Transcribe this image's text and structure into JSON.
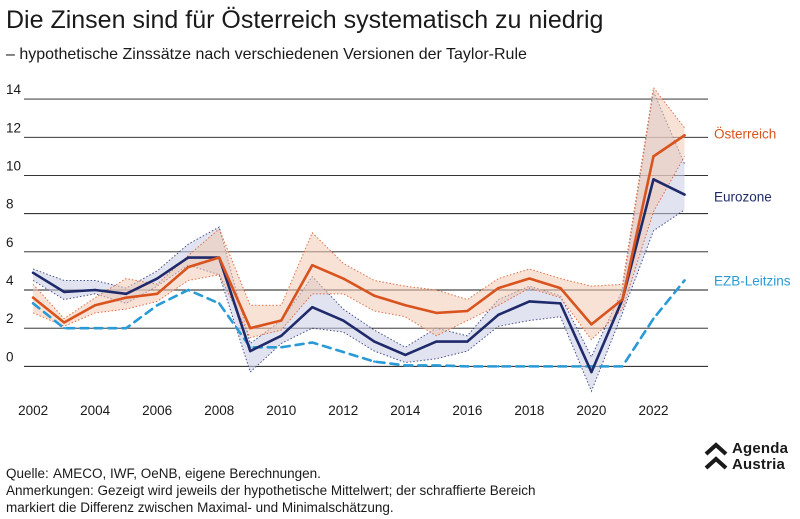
{
  "header": {
    "title": "Die Zinsen sind für Österreich systematisch zu niedrig",
    "subtitle": "– hypothetische Zinssätze nach verschiedenen Versionen der Taylor-Rule"
  },
  "chart_data": {
    "type": "line",
    "x": [
      2002,
      2003,
      2004,
      2005,
      2006,
      2007,
      2008,
      2009,
      2010,
      2011,
      2012,
      2013,
      2014,
      2015,
      2016,
      2017,
      2018,
      2019,
      2020,
      2021,
      2022,
      2023
    ],
    "xticks": [
      2002,
      2004,
      2006,
      2008,
      2010,
      2012,
      2014,
      2016,
      2018,
      2020,
      2022
    ],
    "yticks": [
      0,
      2,
      4,
      6,
      8,
      10,
      12,
      14
    ],
    "ylim": [
      -1.5,
      15
    ],
    "xlim": [
      2001.9,
      2023.5
    ],
    "grid": true,
    "series": [
      {
        "name": "Österreich",
        "color": "#d9531e",
        "style": "solid",
        "values": [
          3.6,
          2.3,
          3.2,
          3.6,
          3.8,
          5.2,
          5.7,
          2.0,
          2.4,
          5.3,
          4.6,
          3.7,
          3.2,
          2.8,
          2.9,
          4.1,
          4.6,
          4.1,
          2.2,
          3.5,
          11.0,
          12.1
        ],
        "band_max": [
          4.3,
          2.5,
          3.6,
          4.6,
          4.3,
          5.8,
          7.2,
          3.2,
          3.2,
          7.0,
          5.4,
          4.5,
          4.2,
          4.0,
          3.5,
          4.6,
          5.1,
          4.6,
          4.2,
          4.3,
          14.6,
          12.5
        ],
        "band_min": [
          2.8,
          2.1,
          2.8,
          3.0,
          3.4,
          4.5,
          4.8,
          1.5,
          1.9,
          3.8,
          3.8,
          2.9,
          2.6,
          1.6,
          2.4,
          3.2,
          4.1,
          3.6,
          1.4,
          3.0,
          8.1,
          11.0
        ]
      },
      {
        "name": "Eurozone",
        "color": "#1f2a6b",
        "style": "solid",
        "values": [
          4.9,
          3.9,
          4.0,
          3.8,
          4.6,
          5.7,
          5.7,
          0.8,
          1.6,
          3.1,
          2.4,
          1.3,
          0.6,
          1.3,
          1.3,
          2.7,
          3.4,
          3.3,
          -0.3,
          3.5,
          9.8,
          9.0
        ],
        "band_max": [
          5.1,
          4.5,
          4.5,
          4.1,
          5.0,
          6.4,
          7.3,
          1.2,
          2.4,
          4.7,
          3.0,
          1.9,
          1.0,
          2.0,
          1.6,
          3.5,
          4.2,
          3.7,
          0.5,
          4.0,
          14.4,
          10.6
        ],
        "band_min": [
          4.5,
          3.5,
          3.8,
          3.3,
          4.2,
          5.3,
          4.8,
          -0.3,
          1.2,
          2.0,
          1.8,
          0.8,
          0.2,
          0.4,
          0.8,
          2.1,
          2.4,
          2.6,
          -1.3,
          2.8,
          7.1,
          8.2
        ]
      },
      {
        "name": "EZB-Leitzins",
        "color": "#2a9ad6",
        "style": "dashed",
        "values": [
          3.3,
          2.0,
          2.0,
          2.0,
          3.2,
          4.0,
          3.3,
          1.0,
          1.0,
          1.25,
          0.75,
          0.25,
          0.05,
          0.05,
          0.0,
          0.0,
          0.0,
          0.0,
          0.0,
          0.0,
          2.5,
          4.5
        ]
      }
    ]
  },
  "footer": {
    "source_label": "Quelle:",
    "source_text": "AMECO, IWF, OeNB, eigene Berechnungen.",
    "notes_line1": "Anmerkungen: Gezeigt wird jeweils der hypothetische Mittelwert; der schraffierte Bereich",
    "notes_line2": "markiert die Differenz zwischen Maximal- und Minimalschätzung."
  },
  "logo": {
    "line1": "Agenda",
    "line2": "Austria"
  }
}
